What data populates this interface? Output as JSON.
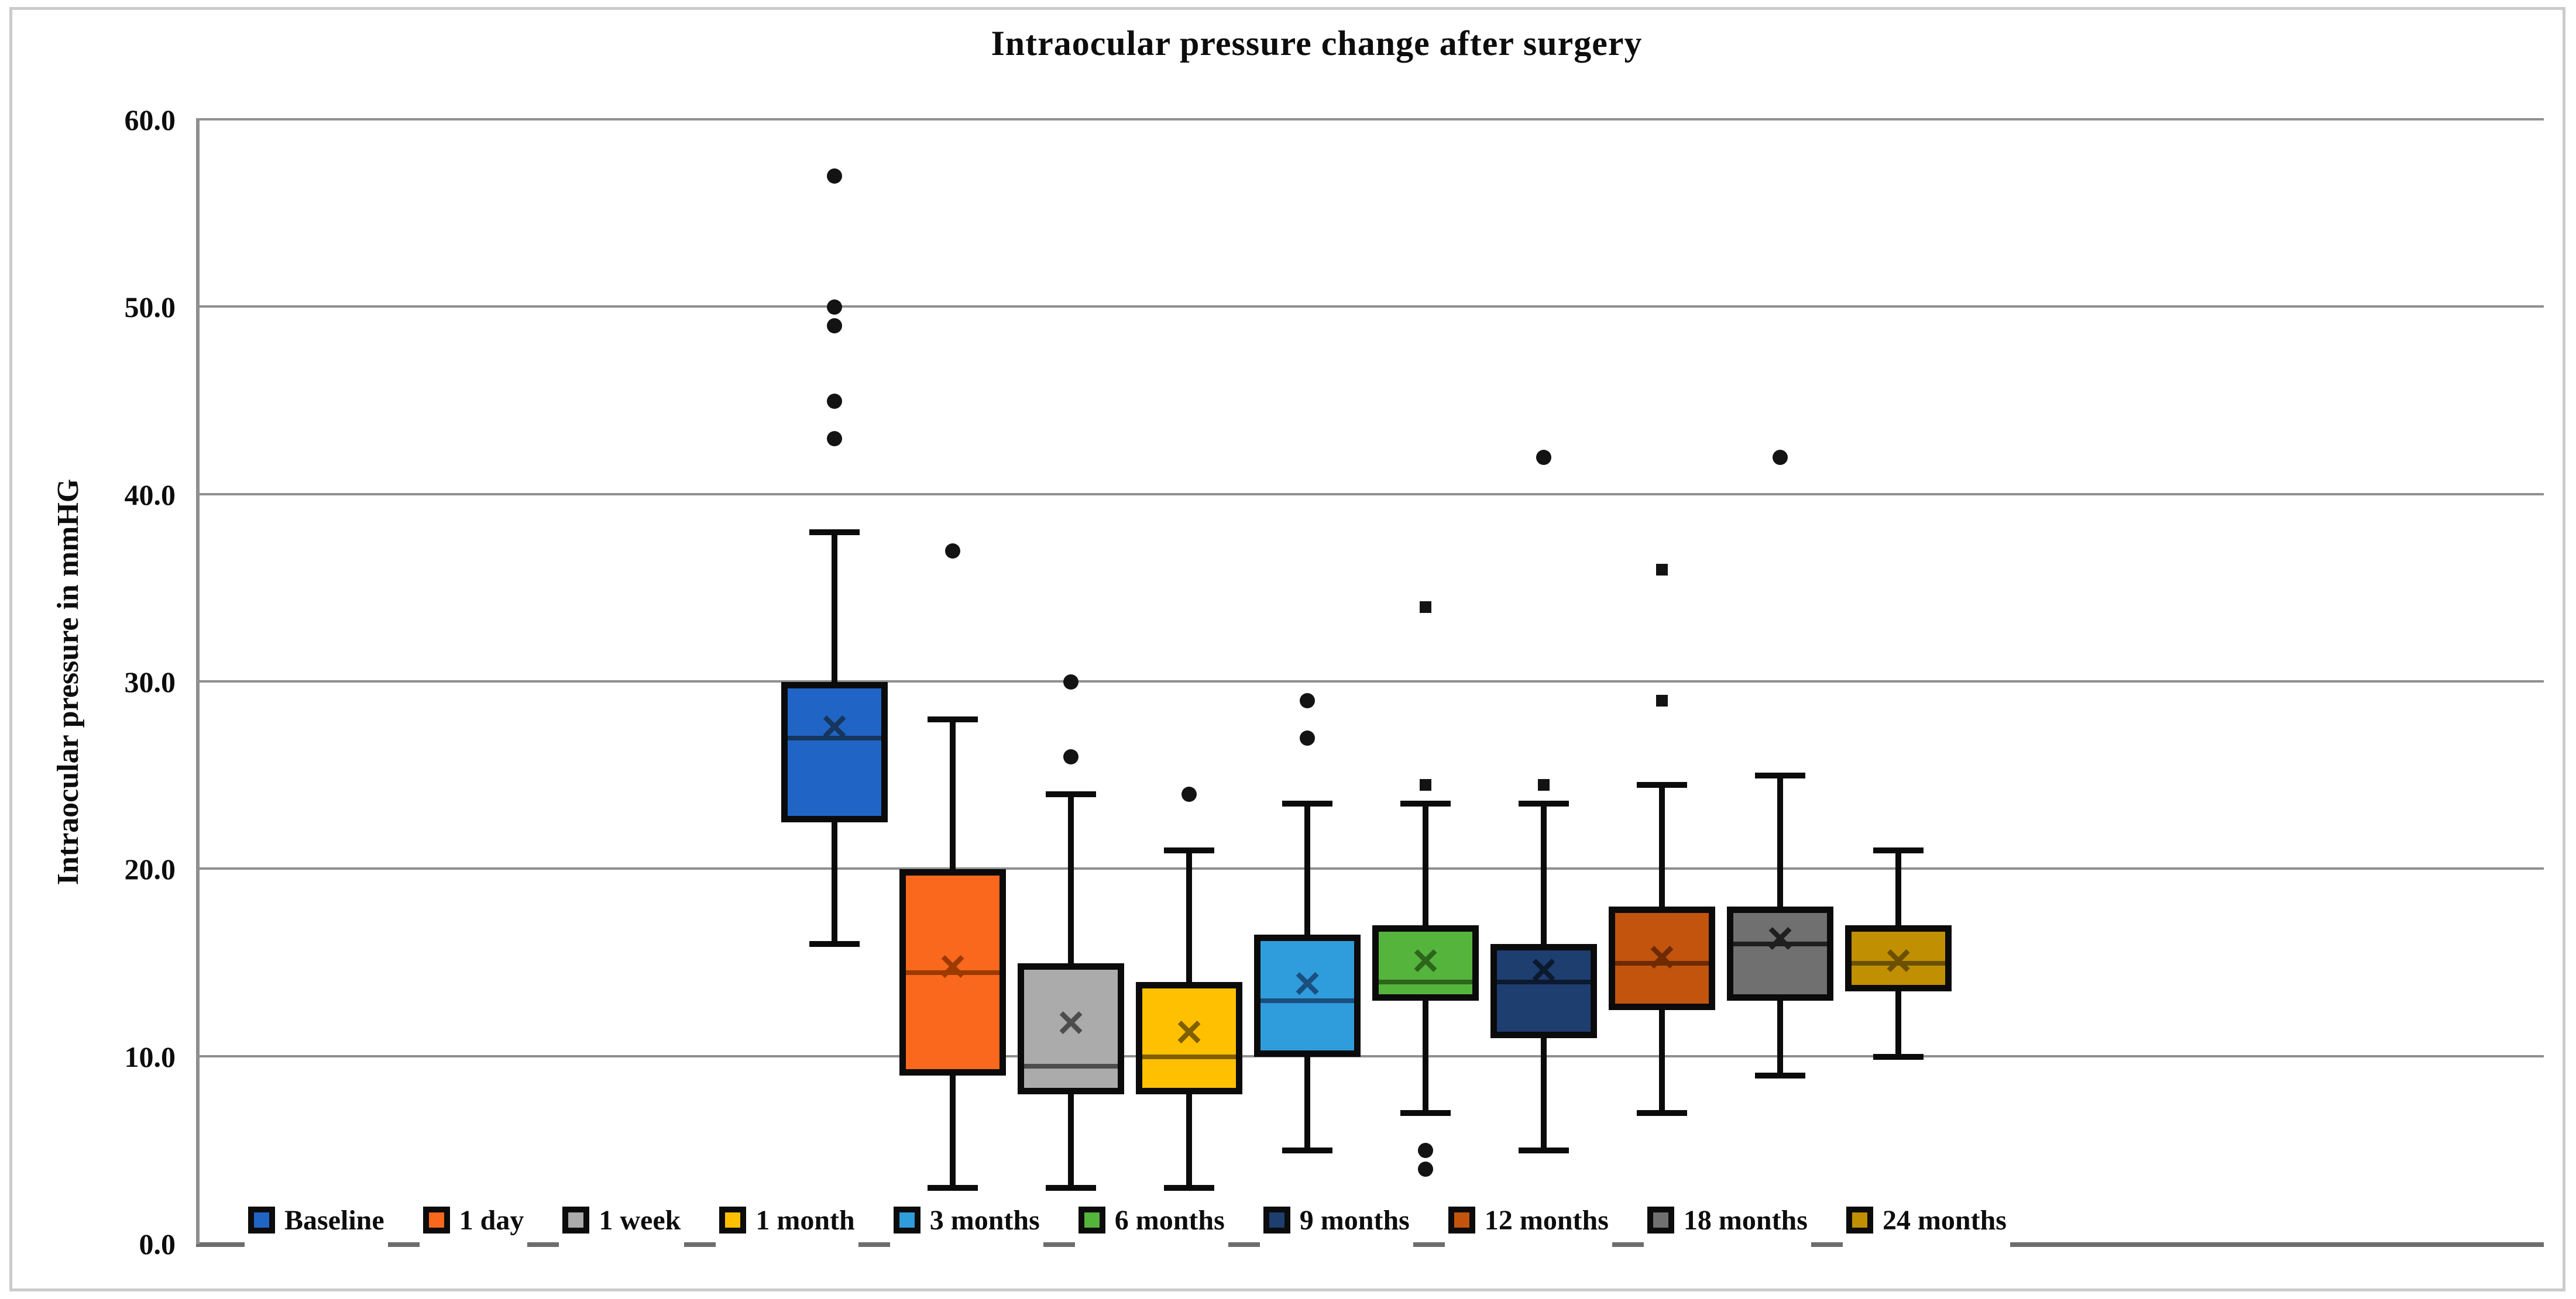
{
  "chart_data": {
    "type": "boxplot",
    "title": "Intraocular pressure change after surgery",
    "ylabel": "Intraocular pressure in mmHG",
    "ylim": [
      0,
      60
    ],
    "ytick_step": 10,
    "yticks": [
      {
        "value": 0,
        "label": "0.0"
      },
      {
        "value": 10,
        "label": "10.0"
      },
      {
        "value": 20,
        "label": "20.0"
      },
      {
        "value": 30,
        "label": "30.0"
      },
      {
        "value": 40,
        "label": "40.0"
      },
      {
        "value": 50,
        "label": "50.0"
      },
      {
        "value": 60,
        "label": "60.0"
      }
    ],
    "grid": true,
    "grid_color": "#8f8f8f",
    "axis_color": "#6d6d6d",
    "box_border_color": "#0b0b0b",
    "marker_color": "#131313",
    "legend_position": "bottom-inside",
    "categories": [
      "Baseline",
      "1 day",
      "1 week",
      "1 month",
      "3 months",
      "6 months",
      "9 months",
      "12 months",
      "18 months",
      "24 months"
    ],
    "series": [
      {
        "name": "Baseline",
        "fill": "#2065C6",
        "line": "#16365C",
        "low": 16,
        "q1": 22.5,
        "median": 27,
        "mean": 27.6,
        "q3": 30,
        "high": 38,
        "outliers": [
          {
            "value": 43,
            "marker": "circle"
          },
          {
            "value": 45,
            "marker": "circle"
          },
          {
            "value": 49,
            "marker": "circle"
          },
          {
            "value": 50,
            "marker": "circle"
          },
          {
            "value": 57,
            "marker": "circle"
          }
        ]
      },
      {
        "name": "1 day",
        "fill": "#F9681D",
        "line": "#9C3A00",
        "low": 3,
        "q1": 9,
        "median": 14.5,
        "mean": 14.8,
        "q3": 20,
        "high": 28,
        "outliers": [
          {
            "value": 37,
            "marker": "circle"
          }
        ]
      },
      {
        "name": "1 week",
        "fill": "#ABABAB",
        "line": "#4D4D4D",
        "low": 3,
        "q1": 8,
        "median": 9.5,
        "mean": 11.8,
        "q3": 15,
        "high": 24,
        "outliers": [
          {
            "value": 26,
            "marker": "circle"
          },
          {
            "value": 30,
            "marker": "circle"
          }
        ]
      },
      {
        "name": "1 month",
        "fill": "#FFC002",
        "line": "#7F6000",
        "low": 3,
        "q1": 8,
        "median": 10,
        "mean": 11.3,
        "q3": 14,
        "high": 21,
        "outliers": [
          {
            "value": 24,
            "marker": "circle"
          }
        ]
      },
      {
        "name": "3 months",
        "fill": "#2F9CDC",
        "line": "#1A4F7E",
        "low": 5,
        "q1": 10,
        "median": 13,
        "mean": 13.9,
        "q3": 16.5,
        "high": 23.5,
        "outliers": [
          {
            "value": 27,
            "marker": "circle"
          },
          {
            "value": 29,
            "marker": "circle"
          }
        ]
      },
      {
        "name": "6 months",
        "fill": "#55B43C",
        "line": "#2D661B",
        "low": 7,
        "q1": 13,
        "median": 14,
        "mean": 15.1,
        "q3": 17,
        "high": 23.5,
        "outliers": [
          {
            "value": 4,
            "marker": "circle"
          },
          {
            "value": 5,
            "marker": "circle"
          },
          {
            "value": 24.5,
            "marker": "square"
          },
          {
            "value": 34,
            "marker": "square"
          }
        ]
      },
      {
        "name": "9 months",
        "fill": "#1F3E70",
        "line": "#0C1A30",
        "low": 5,
        "q1": 11,
        "median": 14,
        "mean": 14.6,
        "q3": 16,
        "high": 23.5,
        "outliers": [
          {
            "value": 24.5,
            "marker": "square"
          },
          {
            "value": 42,
            "marker": "circle"
          }
        ]
      },
      {
        "name": "12 months",
        "fill": "#C2540E",
        "line": "#6E2A03",
        "low": 7,
        "q1": 12.5,
        "median": 15,
        "mean": 15.3,
        "q3": 18,
        "high": 24.5,
        "outliers": [
          {
            "value": 29,
            "marker": "square"
          },
          {
            "value": 36,
            "marker": "square"
          }
        ]
      },
      {
        "name": "18 months",
        "fill": "#707070",
        "line": "#1F1F1F",
        "low": 9,
        "q1": 13,
        "median": 16,
        "mean": 16.3,
        "q3": 18,
        "high": 25,
        "outliers": [
          {
            "value": 42,
            "marker": "circle"
          }
        ]
      },
      {
        "name": "24 months",
        "fill": "#C08F02",
        "line": "#6B5000",
        "low": 10,
        "q1": 13.5,
        "median": 15,
        "mean": 15.1,
        "q3": 17,
        "high": 21,
        "outliers": []
      }
    ]
  }
}
